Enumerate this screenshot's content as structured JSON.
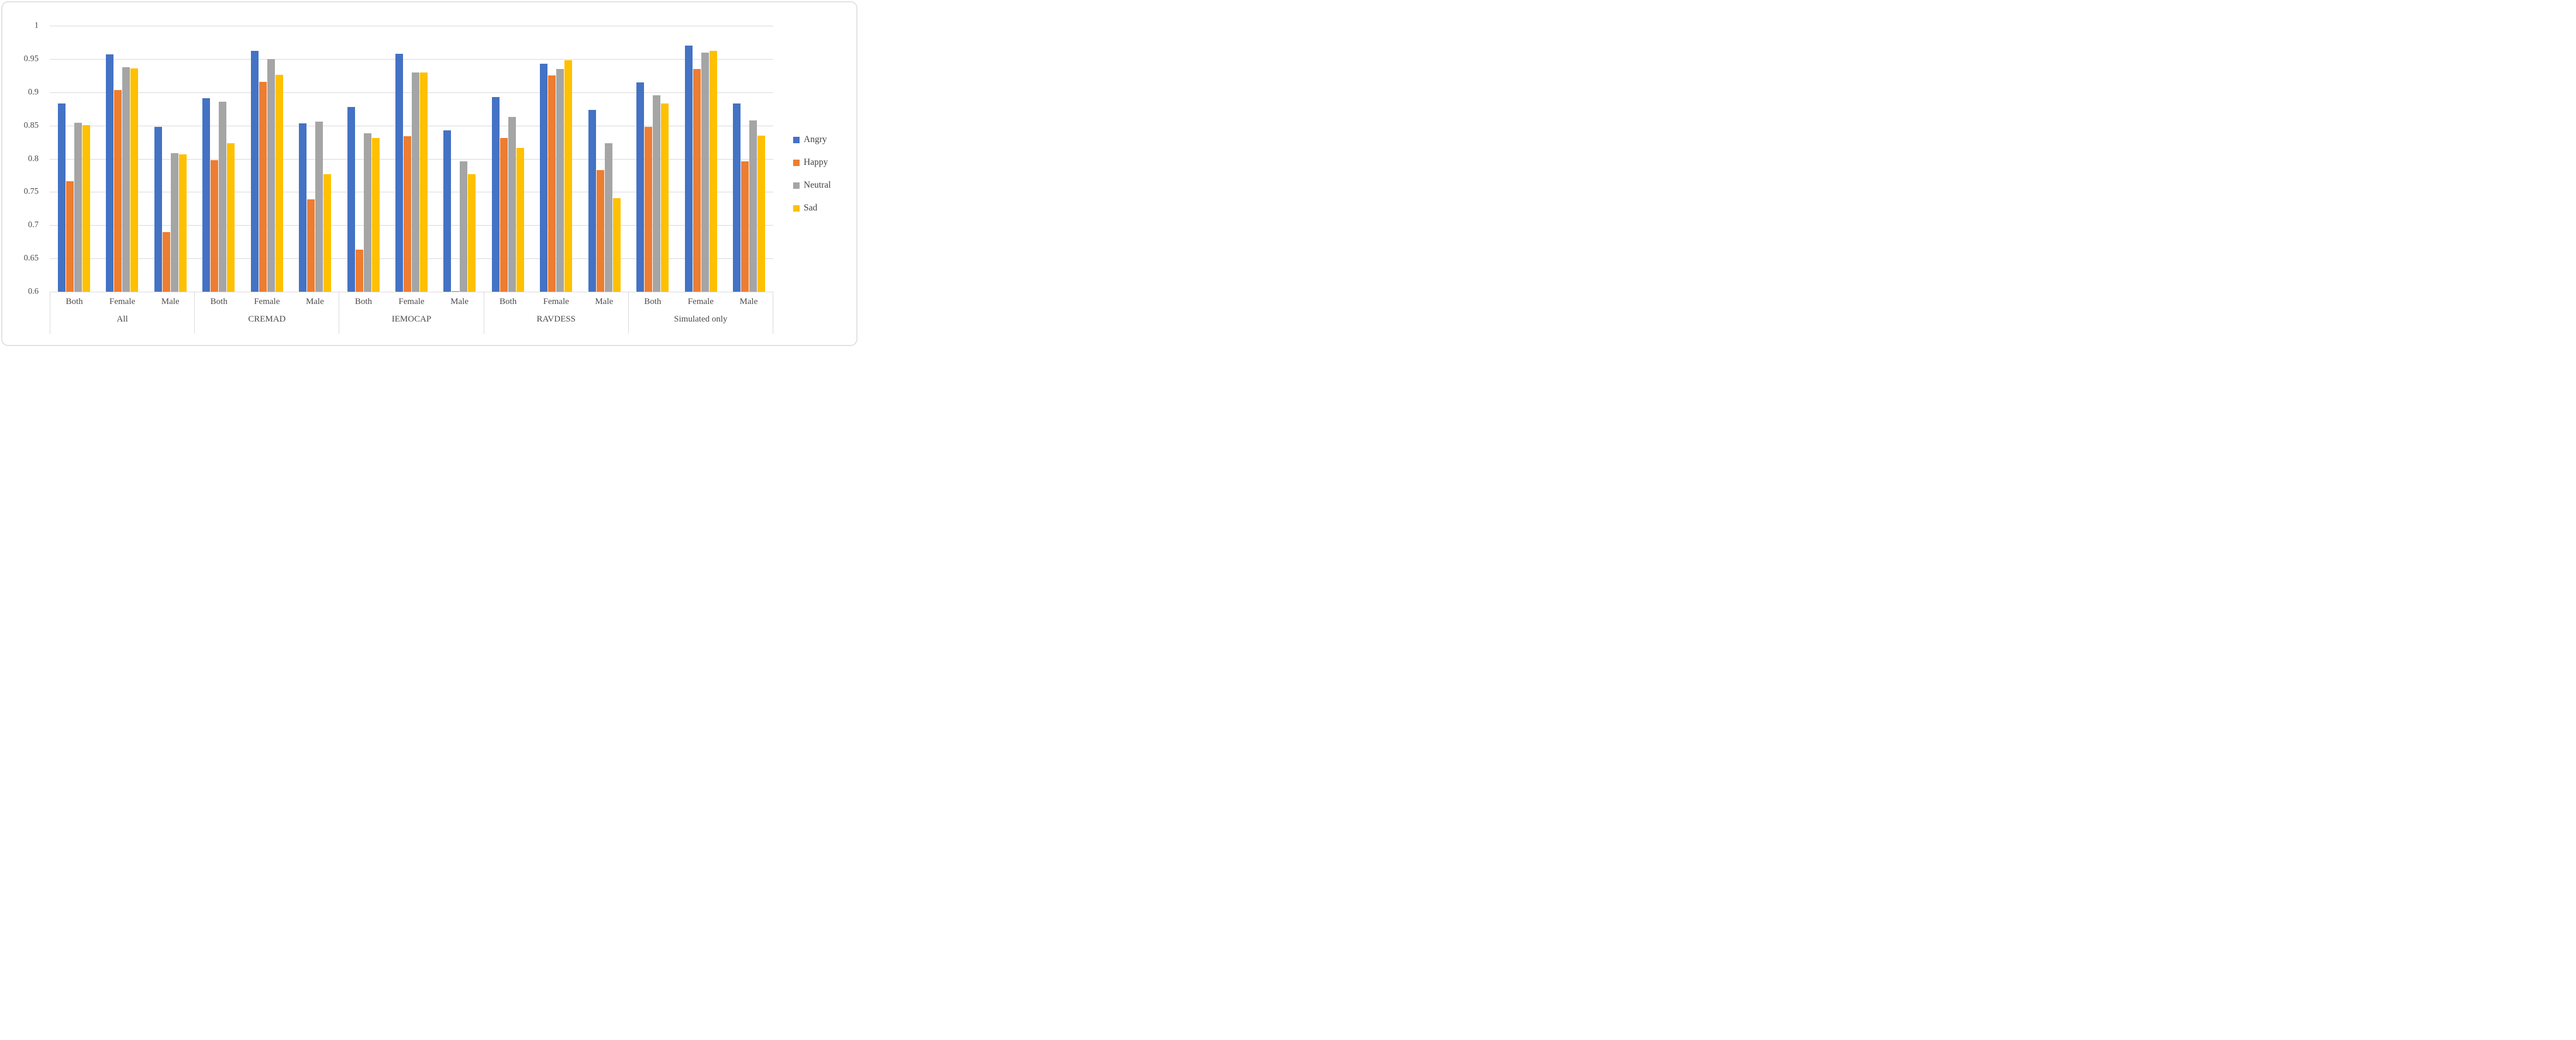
{
  "chart_data": {
    "type": "bar",
    "title": "",
    "xlabel": "",
    "ylabel": "",
    "ylim": [
      0.6,
      1.0
    ],
    "ytick_step": 0.05,
    "grid": true,
    "legend_position": "right-middle",
    "yticks": [
      "1",
      "0.95",
      "0.9",
      "0.85",
      "0.8",
      "0.75",
      "0.7",
      "0.65",
      "0.6"
    ],
    "series": [
      {
        "name": "Angry",
        "color": "#4472C4"
      },
      {
        "name": "Happy",
        "color": "#ED7D31"
      },
      {
        "name": "Neutral",
        "color": "#A5A5A5"
      },
      {
        "name": "Sad",
        "color": "#FFC000"
      }
    ],
    "groups": [
      {
        "label": "All",
        "clusters": [
          {
            "label": "Both",
            "values": [
              0.883,
              0.766,
              0.854,
              0.851
            ]
          },
          {
            "label": "Female",
            "values": [
              0.957,
              0.903,
              0.938,
              0.936
            ]
          },
          {
            "label": "Male",
            "values": [
              0.848,
              0.69,
              0.808,
              0.807
            ]
          }
        ]
      },
      {
        "label": "CREMAD",
        "clusters": [
          {
            "label": "Both",
            "values": [
              0.891,
              0.798,
              0.886,
              0.823
            ]
          },
          {
            "label": "Female",
            "values": [
              0.962,
              0.916,
              0.95,
              0.926
            ]
          },
          {
            "label": "Male",
            "values": [
              0.853,
              0.739,
              0.856,
              0.777
            ]
          }
        ]
      },
      {
        "label": "IEMOCAP",
        "clusters": [
          {
            "label": "Both",
            "values": [
              0.878,
              0.663,
              0.838,
              0.831
            ]
          },
          {
            "label": "Female",
            "values": [
              0.958,
              0.834,
              0.93,
              0.93
            ]
          },
          {
            "label": "Male",
            "values": [
              0.843,
              0.601,
              0.796,
              0.777
            ]
          }
        ]
      },
      {
        "label": "RAVDESS",
        "clusters": [
          {
            "label": "Both",
            "values": [
              0.893,
              0.831,
              0.863,
              0.816
            ]
          },
          {
            "label": "Female",
            "values": [
              0.943,
              0.925,
              0.935,
              0.948
            ]
          },
          {
            "label": "Male",
            "values": [
              0.873,
              0.783,
              0.823,
              0.741
            ]
          }
        ]
      },
      {
        "label": "Simulated only",
        "clusters": [
          {
            "label": "Both",
            "values": [
              0.915,
              0.848,
              0.895,
              0.883
            ]
          },
          {
            "label": "Female",
            "values": [
              0.97,
              0.935,
              0.96,
              0.962
            ]
          },
          {
            "label": "Male",
            "values": [
              0.883,
              0.796,
              0.858,
              0.835
            ]
          }
        ]
      }
    ]
  },
  "styles": {
    "grid_color": "#d9d9d9",
    "axis_line_color": "#d9d9d9",
    "text_color": "#4a4a4a",
    "background": "#ffffff",
    "border_color": "#e2e2e2"
  }
}
